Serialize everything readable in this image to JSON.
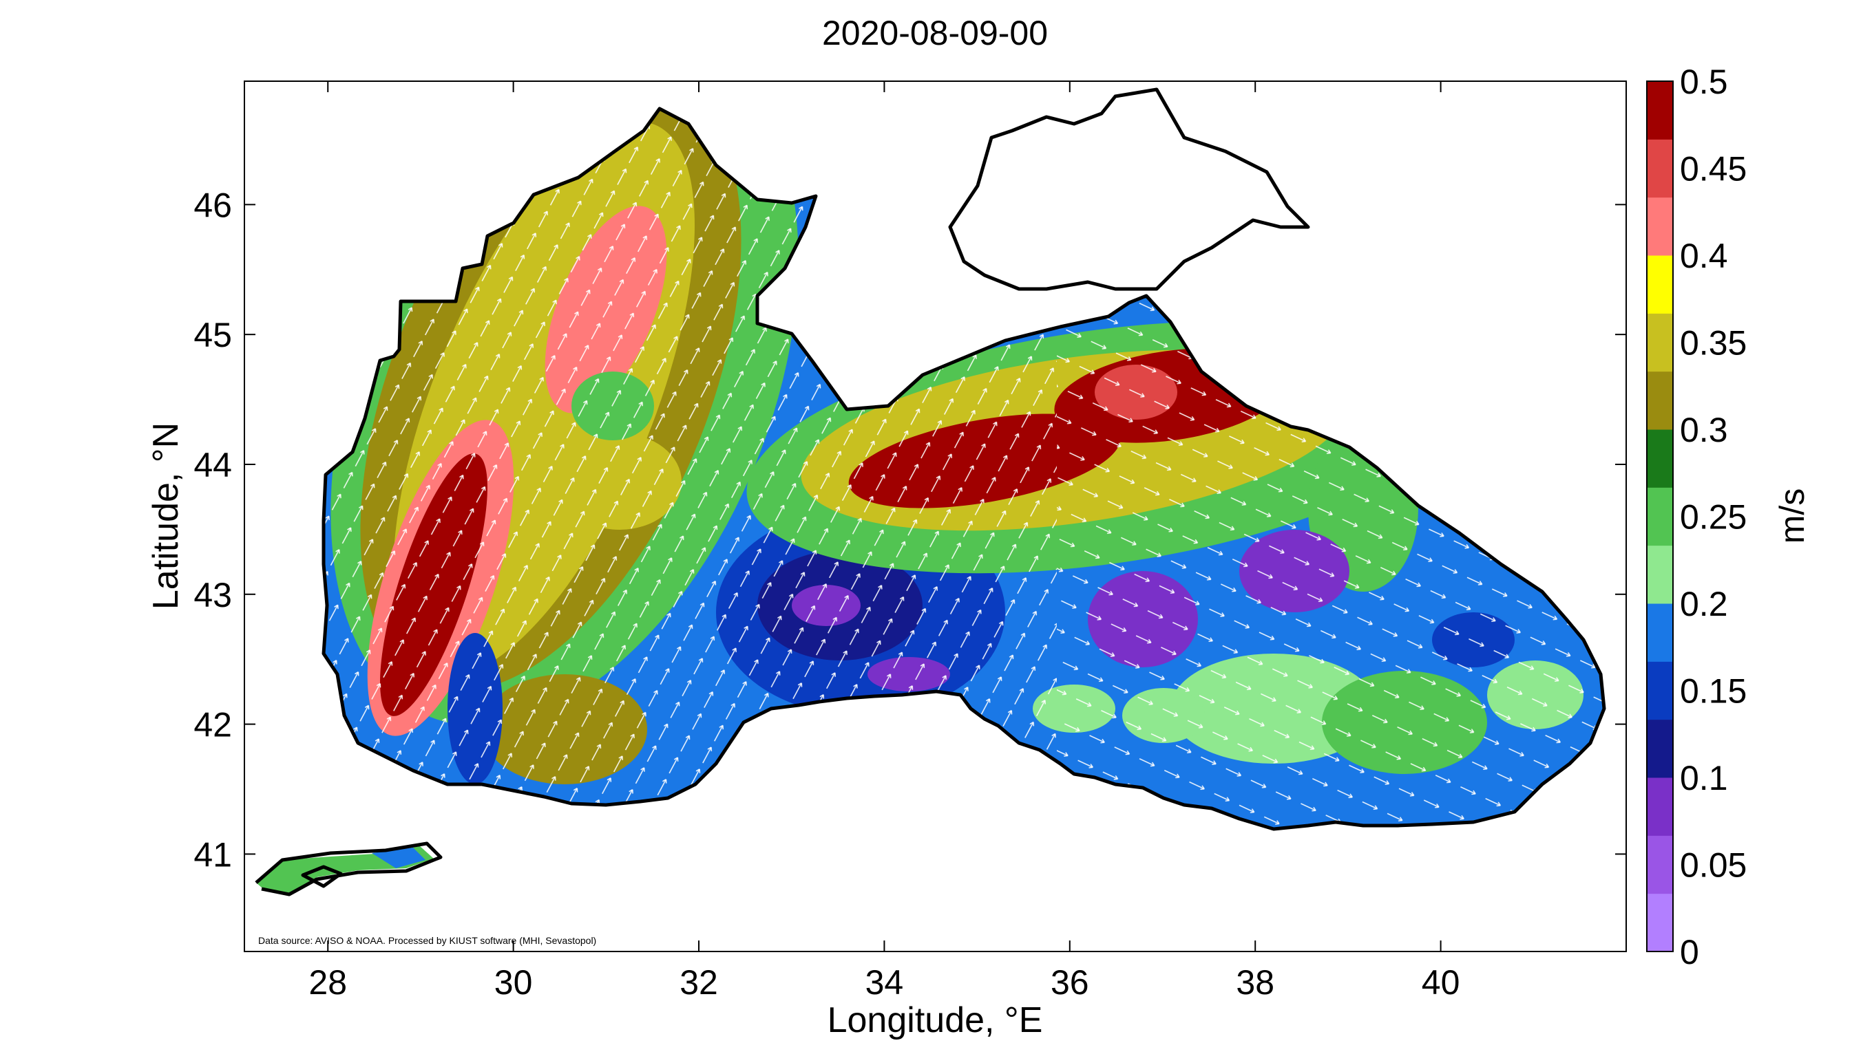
{
  "title": "2020-08-09-00",
  "x_axis": {
    "label": "Longitude, °E",
    "ticks": [
      "28",
      "30",
      "32",
      "34",
      "36",
      "38",
      "40"
    ],
    "tick_values": [
      28,
      30,
      32,
      34,
      36,
      38,
      40
    ],
    "range": [
      27.1,
      42.0
    ]
  },
  "y_axis": {
    "label": "Latitude, °N",
    "ticks": [
      "41",
      "42",
      "43",
      "44",
      "45",
      "46"
    ],
    "tick_values": [
      41,
      42,
      43,
      44,
      45,
      46
    ],
    "range": [
      40.25,
      46.95
    ]
  },
  "colorbar": {
    "label": "m/s",
    "ticks": [
      "0",
      "0.05",
      "0.1",
      "0.15",
      "0.2",
      "0.25",
      "0.3",
      "0.35",
      "0.4",
      "0.45",
      "0.5"
    ],
    "range": [
      0,
      0.5
    ],
    "colors": [
      "#b27fff",
      "#9a55e6",
      "#7a30c8",
      "#141a8c",
      "#0a3cc0",
      "#1a78e6",
      "#8fe88f",
      "#52c452",
      "#1a7a1a",
      "#9a8c10",
      "#c8c020",
      "#ffff00",
      "#ff7a7a",
      "#e04646",
      "#a00000"
    ]
  },
  "source_note": "Data source: AVISO & NOAA. Processed by KIUST software (MHI, Sevastopol)",
  "colors": {
    "coastline": "#000000",
    "vectors": "#ffffff",
    "background": "#ffffff"
  },
  "map_data": {
    "variable": "surface current speed",
    "units": "m/s",
    "region": "Black Sea"
  }
}
